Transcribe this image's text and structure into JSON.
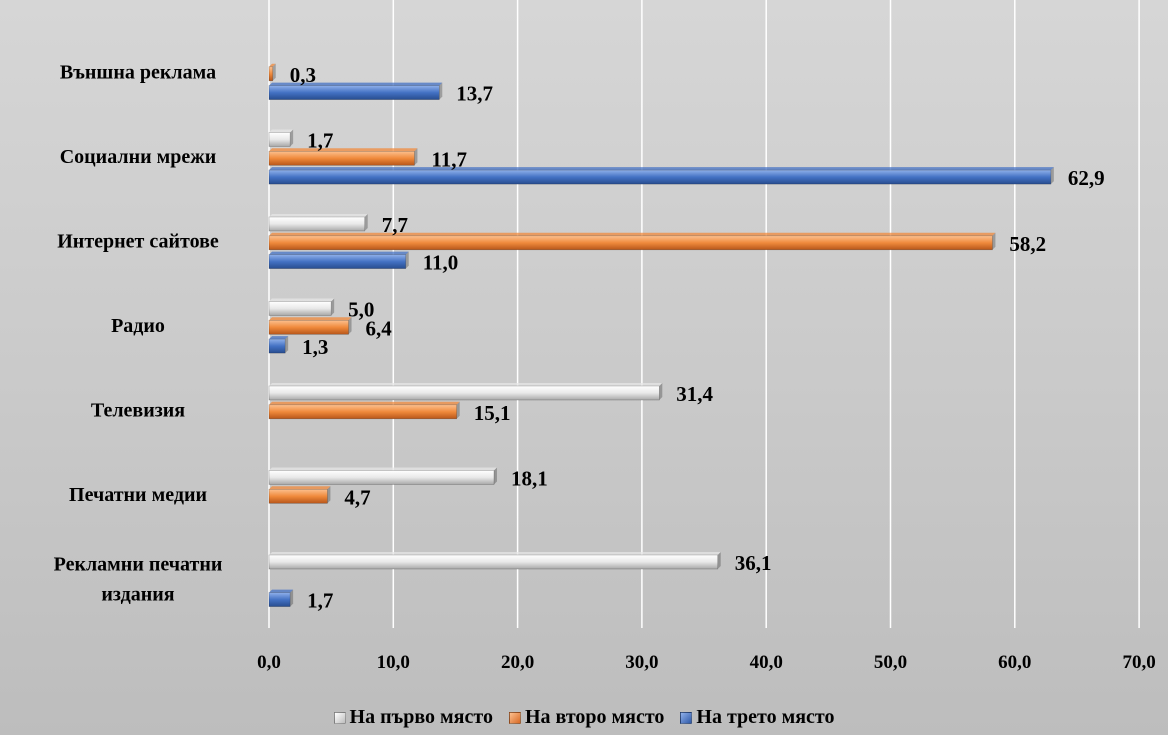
{
  "chart_data": {
    "type": "bar",
    "orientation": "horizontal",
    "categories": [
      "Външна реклама",
      "Социални мрежи",
      "Интернет сайтове",
      "Радио",
      "Телевизия",
      "Печатни медии",
      "Рекламни печатни издания"
    ],
    "category_lines": [
      [
        "Външна реклама"
      ],
      [
        "Социални мрежи"
      ],
      [
        "Интернет сайтове"
      ],
      [
        "Радио"
      ],
      [
        "Телевизия"
      ],
      [
        "Печатни медии"
      ],
      [
        "Рекламни печатни",
        "издания"
      ]
    ],
    "series": [
      {
        "name": "На първо място",
        "color": "#e6e6e6",
        "values": [
          null,
          1.7,
          7.7,
          5.0,
          31.4,
          18.1,
          36.1
        ],
        "labels": [
          "",
          "1,7",
          "7,7",
          "5,0",
          "31,4",
          "18,1",
          "36,1"
        ]
      },
      {
        "name": "На второ място",
        "color": "#f08a3c",
        "values": [
          0.3,
          11.7,
          58.2,
          6.4,
          15.1,
          4.7,
          null
        ],
        "labels": [
          "0,3",
          "11,7",
          "58,2",
          "6,4",
          "15,1",
          "4,7",
          ""
        ]
      },
      {
        "name": "На трето място",
        "color": "#4472c4",
        "values": [
          13.7,
          62.9,
          11.0,
          1.3,
          null,
          null,
          1.7
        ],
        "labels": [
          "13,7",
          "62,9",
          "11,0",
          "1,3",
          "",
          "",
          "1,7"
        ]
      }
    ],
    "xlim": [
      0,
      70
    ],
    "xticks": [
      0,
      10,
      20,
      30,
      40,
      50,
      60,
      70
    ],
    "xtick_labels": [
      "0,0",
      "10,0",
      "20,0",
      "30,0",
      "40,0",
      "50,0",
      "60,0",
      "70,0"
    ],
    "grid": "vertical",
    "legend_position": "bottom"
  }
}
